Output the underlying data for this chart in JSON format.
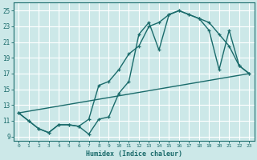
{
  "xlabel": "Humidex (Indice chaleur)",
  "bg_color": "#cce8e8",
  "grid_color": "#ffffff",
  "line_color": "#1a6b6b",
  "xlim": [
    -0.5,
    23.5
  ],
  "ylim": [
    8.5,
    26.0
  ],
  "xticks": [
    0,
    1,
    2,
    3,
    4,
    5,
    6,
    7,
    8,
    9,
    10,
    11,
    12,
    13,
    14,
    15,
    16,
    17,
    18,
    19,
    20,
    21,
    22,
    23
  ],
  "yticks": [
    9,
    11,
    13,
    15,
    17,
    19,
    21,
    23,
    25
  ],
  "line1_x": [
    0,
    1,
    2,
    3,
    4,
    5,
    6,
    7,
    8,
    9,
    10,
    11,
    12,
    13,
    14,
    15,
    16,
    17,
    18,
    19,
    20,
    21,
    22,
    23
  ],
  "line1_y": [
    12.0,
    11.0,
    10.0,
    9.5,
    10.5,
    10.5,
    10.3,
    11.2,
    15.5,
    16.0,
    17.5,
    19.5,
    20.5,
    23.0,
    23.5,
    24.5,
    25.0,
    24.5,
    24.0,
    23.5,
    22.0,
    20.5,
    18.0,
    17.0
  ],
  "line2_x": [
    0,
    1,
    2,
    3,
    4,
    5,
    6,
    7,
    8,
    9,
    10,
    11,
    12,
    13,
    14,
    15,
    16,
    17,
    18,
    19,
    20,
    21,
    22,
    23
  ],
  "line2_y": [
    12.0,
    11.0,
    10.0,
    9.5,
    10.5,
    10.5,
    10.3,
    9.3,
    11.2,
    11.5,
    14.5,
    16.0,
    22.0,
    23.5,
    20.0,
    24.5,
    25.0,
    24.5,
    24.0,
    22.5,
    17.5,
    22.5,
    18.0,
    17.0
  ],
  "line3_x": [
    0,
    23
  ],
  "line3_y": [
    12.0,
    17.0
  ]
}
